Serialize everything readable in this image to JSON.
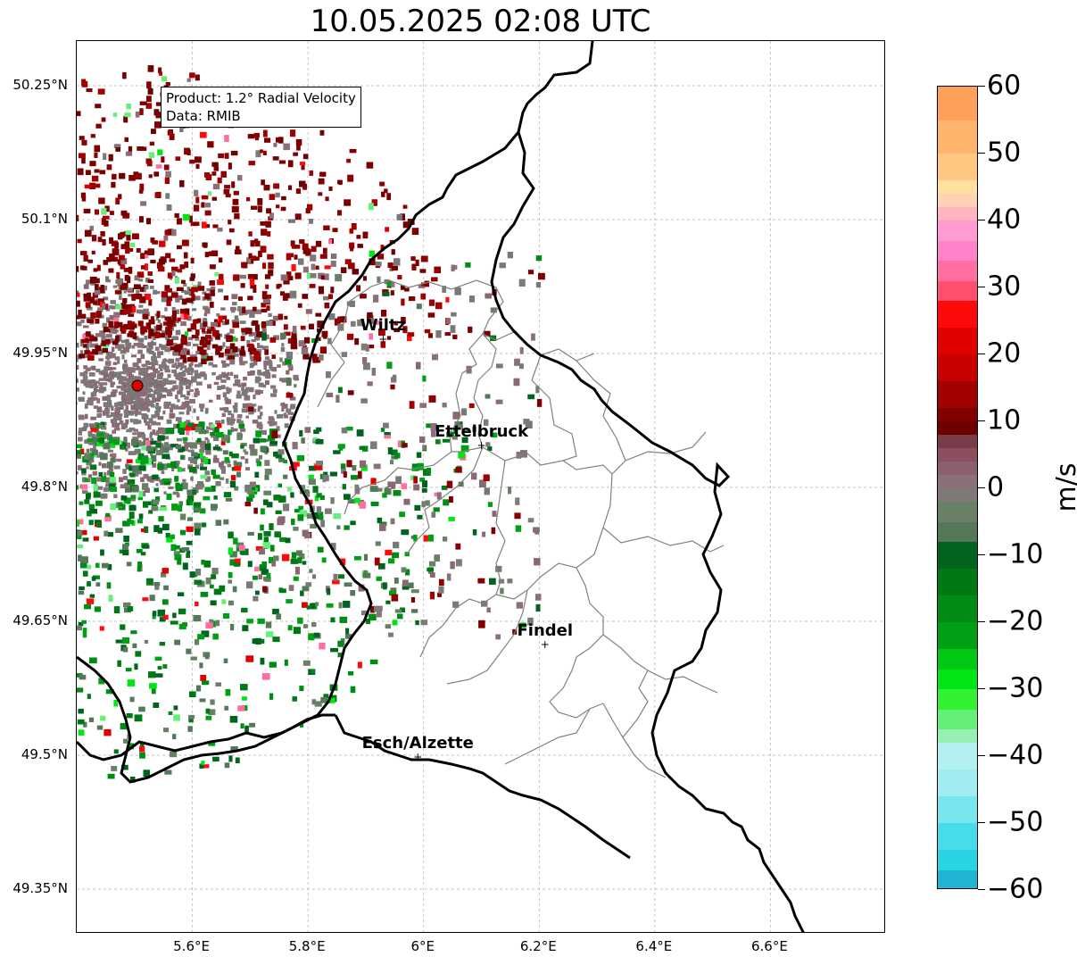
{
  "title": "10.05.2025 02:08 UTC",
  "info": {
    "product": "Product: 1.2° Radial Velocity",
    "data": "Data: RMIB"
  },
  "lat_ticks": [
    "50.25°N",
    "50.1°N",
    "49.95°N",
    "49.8°N",
    "49.65°N",
    "49.5°N",
    "49.35°N"
  ],
  "lon_ticks": [
    "5.6°E",
    "5.8°E",
    "6°E",
    "6.2°E",
    "6.4°E",
    "6.6°E"
  ],
  "cities": [
    {
      "name": "Wiltz",
      "lon": 5.93,
      "lat": 49.966
    },
    {
      "name": "Ettelbruck",
      "lon": 6.1,
      "lat": 49.847
    },
    {
      "name": "Findel",
      "lon": 6.21,
      "lat": 49.624
    },
    {
      "name": "Esch/Alzette",
      "lon": 5.99,
      "lat": 49.498
    }
  ],
  "radar_site": {
    "lon": 5.505,
    "lat": 49.914
  },
  "colorbar": {
    "label": "m/s",
    "ticks": [
      "60",
      "50",
      "40",
      "30",
      "20",
      "10",
      "0",
      "−10",
      "−20",
      "−30",
      "−40",
      "−50",
      "−60"
    ],
    "min": -60,
    "max": 60
  },
  "colors": {
    "border": "#000000",
    "cantons": "#808080",
    "grid": "#b0b0b0",
    "radar_site": "#e00000"
  }
}
